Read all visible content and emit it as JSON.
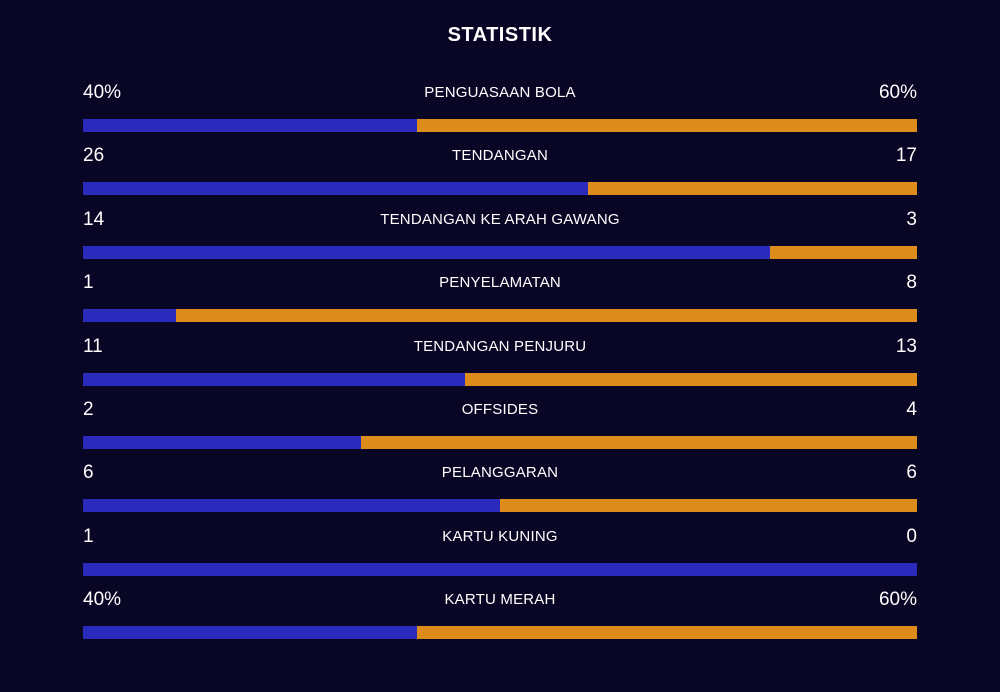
{
  "title": "STATISTIK",
  "colors": {
    "background": "#080624",
    "home": "#2a2bbd",
    "away": "#dd8b1a"
  },
  "stats": [
    {
      "label": "PENGUASAAN BOLA",
      "home": "40%",
      "away": "60%",
      "home_share": 0.4
    },
    {
      "label": "TENDANGAN",
      "home": "26",
      "away": "17",
      "home_share": 0.605
    },
    {
      "label": "TENDANGAN KE ARAH GAWANG",
      "home": "14",
      "away": "3",
      "home_share": 0.824
    },
    {
      "label": "PENYELAMATAN",
      "home": "1",
      "away": "8",
      "home_share": 0.111
    },
    {
      "label": "TENDANGAN PENJURU",
      "home": "11",
      "away": "13",
      "home_share": 0.458
    },
    {
      "label": "OFFSIDES",
      "home": "2",
      "away": "4",
      "home_share": 0.333
    },
    {
      "label": "PELANGGARAN",
      "home": "6",
      "away": "6",
      "home_share": 0.5
    },
    {
      "label": "KARTU KUNING",
      "home": "1",
      "away": "0",
      "home_share": 1.0
    },
    {
      "label": "KARTU MERAH",
      "home": "40%",
      "away": "60%",
      "home_share": 0.4
    }
  ]
}
